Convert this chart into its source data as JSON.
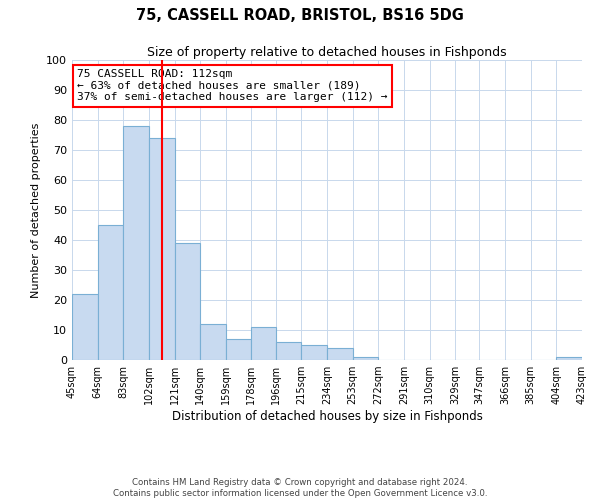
{
  "title": "75, CASSELL ROAD, BRISTOL, BS16 5DG",
  "subtitle": "Size of property relative to detached houses in Fishponds",
  "xlabel": "Distribution of detached houses by size in Fishponds",
  "ylabel": "Number of detached properties",
  "bar_color": "#c8daf0",
  "bar_edge_color": "#7aafd4",
  "vline_x": 112,
  "vline_color": "red",
  "ylim": [
    0,
    100
  ],
  "annotation_line1": "75 CASSELL ROAD: 112sqm",
  "annotation_line2": "← 63% of detached houses are smaller (189)",
  "annotation_line3": "37% of semi-detached houses are larger (112) →",
  "annotation_box_color": "white",
  "annotation_box_edge": "red",
  "footer1": "Contains HM Land Registry data © Crown copyright and database right 2024.",
  "footer2": "Contains public sector information licensed under the Open Government Licence v3.0.",
  "bin_edges": [
    45,
    64,
    83,
    102,
    121,
    140,
    159,
    178,
    196,
    215,
    234,
    253,
    272,
    291,
    310,
    329,
    347,
    366,
    385,
    404,
    423
  ],
  "bin_counts": [
    22,
    45,
    78,
    74,
    39,
    12,
    7,
    11,
    6,
    5,
    4,
    1,
    0,
    0,
    0,
    0,
    0,
    0,
    0,
    1
  ]
}
